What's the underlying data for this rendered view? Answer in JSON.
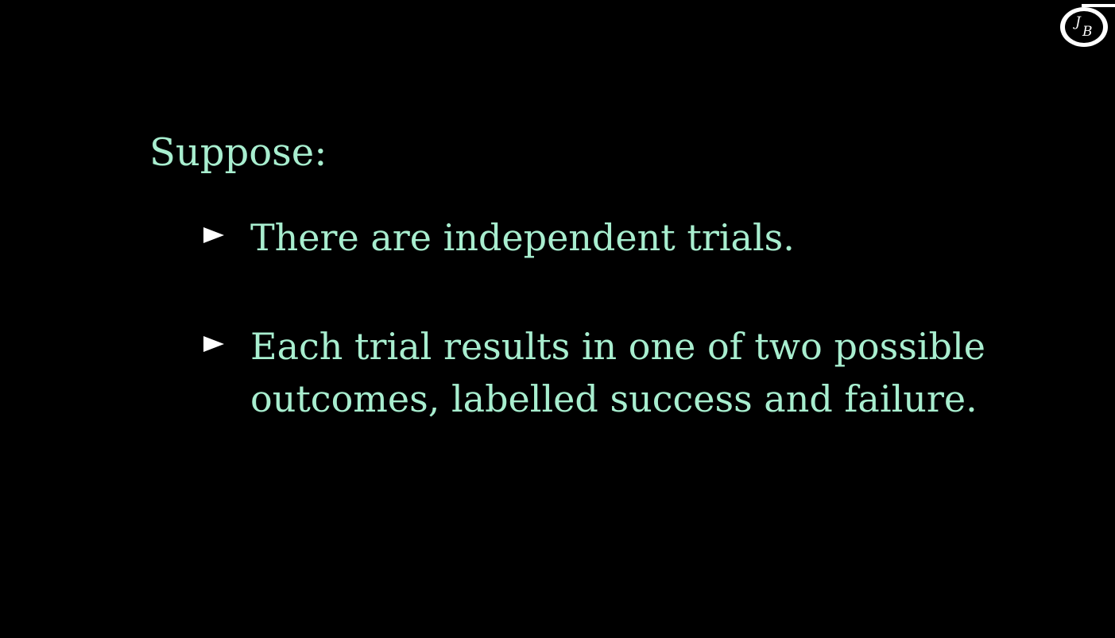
{
  "logo": {
    "text_j": "J",
    "text_b": "B"
  },
  "heading": "Suppose:",
  "bullets": [
    {
      "lines": [
        "There are independent trials."
      ]
    },
    {
      "lines": [
        "Each trial results in one of two possible",
        "outcomes, labelled success and failure."
      ]
    }
  ],
  "colors": {
    "background": "#000000",
    "text": "#a8eecf",
    "marker": "#ffffff"
  }
}
